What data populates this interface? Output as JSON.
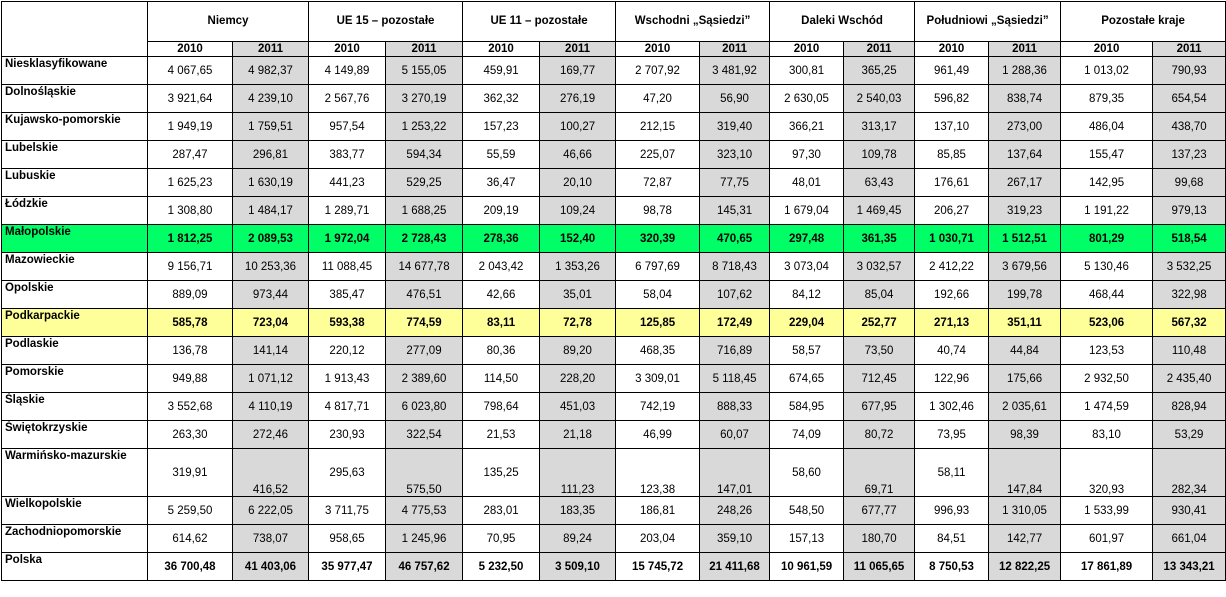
{
  "groups": [
    {
      "label": "Niemcy"
    },
    {
      "label": "UE 15 – pozostałe"
    },
    {
      "label": "UE 11 – pozostałe"
    },
    {
      "label": "Wschodni „Sąsiedzi”"
    },
    {
      "label": "Daleki Wschód"
    },
    {
      "label": "Południowi „Sąsiedzi”"
    },
    {
      "label": "Pozostałe kraje"
    }
  ],
  "years": [
    "2010",
    "2011"
  ],
  "rows": [
    {
      "region": "Niesklasyfikowane",
      "values": [
        "4 067,65",
        "4 982,37",
        "4 149,89",
        "5 155,05",
        "459,91",
        "169,77",
        "2 707,92",
        "3 481,92",
        "300,81",
        "365,25",
        "961,49",
        "1 288,36",
        "1 013,02",
        "790,93"
      ]
    },
    {
      "region": "Dolnośląskie",
      "values": [
        "3 921,64",
        "4 239,10",
        "2 567,76",
        "3 270,19",
        "362,32",
        "276,19",
        "47,20",
        "56,90",
        "2 630,05",
        "2 540,03",
        "596,82",
        "838,74",
        "879,35",
        "654,54"
      ]
    },
    {
      "region": "Kujawsko-pomorskie",
      "values": [
        "1 949,19",
        "1 759,51",
        "957,54",
        "1 253,22",
        "157,23",
        "100,27",
        "212,15",
        "319,40",
        "366,21",
        "313,17",
        "137,10",
        "273,00",
        "486,04",
        "438,70"
      ]
    },
    {
      "region": "Lubelskie",
      "values": [
        "287,47",
        "296,81",
        "383,77",
        "594,34",
        "55,59",
        "46,66",
        "225,07",
        "323,10",
        "97,30",
        "109,78",
        "85,85",
        "137,64",
        "155,47",
        "137,23"
      ]
    },
    {
      "region": "Lubuskie",
      "values": [
        "1 625,23",
        "1 630,19",
        "441,23",
        "529,25",
        "36,47",
        "20,10",
        "72,87",
        "77,75",
        "48,01",
        "63,43",
        "176,61",
        "267,17",
        "142,95",
        "99,68"
      ]
    },
    {
      "region": "Łódzkie",
      "values": [
        "1 308,80",
        "1 484,17",
        "1 289,71",
        "1 688,25",
        "209,19",
        "109,24",
        "98,78",
        "145,31",
        "1 679,04",
        "1 469,45",
        "206,27",
        "319,23",
        "1 191,22",
        "979,13"
      ]
    },
    {
      "region": "Małopolskie",
      "values": [
        "1 812,25",
        "2 089,53",
        "1 972,04",
        "2 728,43",
        "278,36",
        "152,40",
        "320,39",
        "470,65",
        "297,48",
        "361,35",
        "1 030,71",
        "1 512,51",
        "801,29",
        "518,54"
      ]
    },
    {
      "region": "Mazowieckie",
      "values": [
        "9 156,71",
        "10 253,36",
        "11 088,45",
        "14 677,78",
        "2 043,42",
        "1 353,26",
        "6 797,69",
        "8 718,43",
        "3 073,04",
        "3 032,57",
        "2 412,22",
        "3 679,56",
        "5 130,46",
        "3 532,25"
      ]
    },
    {
      "region": "Opolskie",
      "values": [
        "889,09",
        "973,44",
        "385,47",
        "476,51",
        "42,66",
        "35,01",
        "58,04",
        "107,62",
        "84,12",
        "85,04",
        "192,66",
        "199,78",
        "468,44",
        "322,98"
      ]
    },
    {
      "region": "Podkarpackie",
      "values": [
        "585,78",
        "723,04",
        "593,38",
        "774,59",
        "83,11",
        "72,78",
        "125,85",
        "172,49",
        "229,04",
        "252,77",
        "271,13",
        "351,11",
        "523,06",
        "567,32"
      ]
    },
    {
      "region": "Podlaskie",
      "values": [
        "136,78",
        "141,14",
        "220,12",
        "277,09",
        "80,36",
        "89,20",
        "468,35",
        "716,89",
        "58,57",
        "73,50",
        "40,74",
        "44,84",
        "123,53",
        "110,48"
      ]
    },
    {
      "region": "Pomorskie",
      "values": [
        "949,88",
        "1 071,12",
        "1 913,43",
        "2 389,60",
        "114,50",
        "228,20",
        "3 309,01",
        "5 118,45",
        "674,65",
        "712,45",
        "122,96",
        "175,66",
        "2 932,50",
        "2 435,40"
      ]
    },
    {
      "region": "Śląskie",
      "values": [
        "3 552,68",
        "4 110,19",
        "4 817,71",
        "6 023,80",
        "798,64",
        "451,03",
        "742,19",
        "888,33",
        "584,95",
        "677,95",
        "1 302,46",
        "2 035,61",
        "1 474,59",
        "828,94"
      ]
    },
    {
      "region": "Świętokrzyskie",
      "values": [
        "263,30",
        "272,46",
        "230,93",
        "322,54",
        "21,53",
        "21,18",
        "46,99",
        "60,07",
        "74,09",
        "80,72",
        "73,95",
        "98,39",
        "83,10",
        "53,29"
      ]
    },
    {
      "region": "Warmińsko-mazurskie",
      "values": [
        "319,91",
        "416,52",
        "295,63",
        "575,50",
        "135,25",
        "111,23",
        "123,38",
        "147,01",
        "58,60",
        "69,71",
        "58,11",
        "147,84",
        "320,93",
        "282,34"
      ]
    },
    {
      "region": "Wielkopolskie",
      "values": [
        "5 259,50",
        "6 222,05",
        "3 711,75",
        "4 775,53",
        "283,01",
        "183,35",
        "186,81",
        "248,26",
        "548,50",
        "677,77",
        "996,93",
        "1 310,05",
        "1 533,99",
        "930,41"
      ]
    },
    {
      "region": "Zachodniopomorskie",
      "values": [
        "614,62",
        "738,07",
        "958,65",
        "1 245,96",
        "70,95",
        "89,24",
        "203,04",
        "359,10",
        "157,13",
        "180,70",
        "84,51",
        "142,77",
        "601,97",
        "661,04"
      ]
    },
    {
      "region": "Polska",
      "values": [
        "36 700,48",
        "41 403,06",
        "35 977,47",
        "46 757,62",
        "5 232,50",
        "3 509,10",
        "15 745,72",
        "21 411,68",
        "10 961,59",
        "11 065,65",
        "8 750,53",
        "12 822,25",
        "17 861,89",
        "13 343,21"
      ]
    }
  ],
  "highlight_colors": {
    "green": "#00ff66",
    "yellow": "#ffff99",
    "header_text": "#007a3d",
    "shade_2011": "#d9d9d9"
  }
}
